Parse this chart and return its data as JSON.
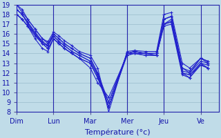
{
  "xlabel": "Température (°c)",
  "xlim": [
    0,
    5.5
  ],
  "ylim": [
    8,
    19
  ],
  "yticks": [
    8,
    9,
    10,
    11,
    12,
    13,
    14,
    15,
    16,
    17,
    18,
    19
  ],
  "xtick_labels": [
    "Dim",
    "Lun",
    "Mar",
    "Mer",
    "Jeu",
    "Ve"
  ],
  "xtick_positions": [
    0.0,
    1.0,
    2.0,
    3.0,
    4.0,
    5.0
  ],
  "bg_color": "#c0dce8",
  "plot_bg_color": "#c0dce8",
  "line_color": "#2222cc",
  "grid_color": "#99bbcc",
  "series": [
    {
      "x": [
        0.0,
        0.15,
        0.3,
        0.5,
        0.7,
        0.85,
        1.0,
        1.15,
        1.3,
        1.5,
        1.7,
        2.0,
        2.2,
        2.5,
        3.0,
        3.2,
        3.5,
        3.8,
        4.0,
        4.2,
        4.5,
        4.7,
        5.0,
        5.2
      ],
      "y": [
        19.0,
        18.5,
        17.5,
        16.5,
        15.5,
        15.0,
        16.0,
        15.5,
        15.0,
        14.5,
        14.0,
        13.5,
        12.0,
        8.5,
        14.0,
        14.2,
        14.0,
        14.0,
        17.5,
        17.8,
        12.5,
        12.0,
        13.5,
        13.0
      ]
    },
    {
      "x": [
        0.0,
        0.15,
        0.3,
        0.5,
        0.7,
        0.85,
        1.0,
        1.15,
        1.3,
        1.5,
        1.7,
        2.0,
        2.2,
        2.5,
        3.0,
        3.2,
        3.5,
        3.8,
        4.0,
        4.2,
        4.5,
        4.7,
        5.0,
        5.2
      ],
      "y": [
        18.5,
        18.0,
        17.0,
        16.0,
        15.0,
        14.5,
        15.5,
        15.0,
        14.5,
        14.0,
        13.5,
        13.0,
        11.5,
        8.5,
        14.0,
        14.0,
        14.0,
        13.8,
        17.0,
        17.5,
        12.0,
        11.5,
        13.0,
        12.5
      ]
    },
    {
      "x": [
        0.0,
        0.15,
        0.3,
        0.5,
        0.7,
        0.85,
        1.0,
        1.15,
        1.3,
        1.5,
        1.7,
        2.0,
        2.2,
        2.5,
        3.0,
        3.2,
        3.5,
        3.8,
        4.0,
        4.2,
        4.5,
        4.7,
        5.0,
        5.2
      ],
      "y": [
        19.0,
        18.2,
        17.5,
        16.5,
        15.5,
        15.2,
        16.2,
        15.8,
        15.3,
        14.8,
        14.2,
        13.8,
        12.5,
        8.0,
        14.2,
        14.3,
        14.2,
        14.2,
        18.0,
        18.2,
        13.0,
        12.5,
        13.5,
        13.2
      ]
    },
    {
      "x": [
        0.0,
        0.15,
        0.3,
        0.5,
        0.7,
        0.85,
        1.0,
        1.15,
        1.3,
        1.5,
        1.7,
        2.0,
        2.2,
        2.5,
        3.0,
        3.2,
        3.5,
        3.8,
        4.0,
        4.2,
        4.5,
        4.7,
        5.0,
        5.2
      ],
      "y": [
        18.0,
        17.5,
        16.8,
        16.0,
        15.2,
        14.8,
        15.8,
        15.2,
        14.8,
        14.2,
        13.8,
        13.2,
        11.8,
        8.5,
        13.8,
        14.0,
        13.8,
        13.8,
        17.0,
        17.2,
        12.0,
        11.8,
        12.8,
        12.5
      ]
    },
    {
      "x": [
        0.0,
        0.15,
        0.3,
        0.5,
        0.7,
        0.85,
        1.0,
        1.15,
        1.3,
        1.5,
        1.7,
        2.0,
        2.2,
        2.5,
        3.0,
        3.2,
        3.5,
        3.8,
        4.0,
        4.2,
        4.5,
        4.7,
        5.0,
        5.2
      ],
      "y": [
        18.5,
        18.0,
        17.2,
        16.2,
        15.2,
        14.8,
        16.0,
        15.5,
        15.0,
        14.5,
        14.0,
        13.5,
        12.0,
        9.0,
        14.0,
        14.2,
        14.0,
        14.0,
        17.5,
        17.8,
        12.2,
        12.0,
        13.2,
        13.0
      ]
    },
    {
      "x": [
        0.0,
        0.15,
        0.3,
        0.5,
        0.7,
        0.85,
        1.0,
        1.15,
        1.3,
        1.5,
        1.7,
        2.0,
        2.2,
        2.5,
        3.0,
        3.2,
        3.5,
        3.8,
        4.0,
        4.2,
        4.5,
        4.7,
        5.0,
        5.2
      ],
      "y": [
        18.0,
        17.5,
        16.8,
        15.8,
        15.0,
        14.5,
        15.5,
        15.0,
        14.5,
        14.0,
        13.5,
        13.0,
        11.5,
        9.0,
        14.0,
        14.0,
        14.0,
        13.8,
        17.0,
        17.3,
        12.0,
        11.8,
        13.0,
        12.8
      ]
    },
    {
      "x": [
        0.0,
        0.15,
        0.3,
        0.5,
        0.7,
        0.85,
        1.0,
        1.15,
        1.3,
        1.5,
        1.7,
        2.0,
        2.2,
        2.5,
        3.0,
        3.2,
        3.5,
        3.8,
        4.0,
        4.2,
        4.5,
        4.7,
        5.0,
        5.2
      ],
      "y": [
        18.0,
        17.5,
        16.8,
        15.5,
        14.5,
        14.2,
        15.5,
        15.0,
        14.5,
        14.0,
        13.5,
        12.5,
        11.0,
        9.5,
        13.8,
        14.0,
        13.8,
        13.8,
        16.8,
        17.0,
        11.8,
        11.5,
        12.8,
        12.5
      ]
    },
    {
      "x": [
        0.0,
        0.15,
        0.3,
        0.5,
        0.7,
        0.85,
        1.0,
        1.15,
        1.3,
        1.5,
        1.7,
        2.0,
        2.2,
        2.5,
        3.0,
        3.2,
        3.5,
        3.8,
        4.0,
        4.2,
        4.5,
        4.7,
        5.0,
        5.2
      ],
      "y": [
        18.5,
        18.0,
        17.2,
        16.0,
        15.0,
        14.8,
        15.8,
        15.2,
        14.8,
        14.2,
        13.8,
        13.2,
        11.8,
        8.5,
        14.0,
        14.2,
        14.0,
        14.0,
        17.5,
        17.8,
        12.5,
        12.2,
        13.5,
        13.2
      ]
    }
  ]
}
